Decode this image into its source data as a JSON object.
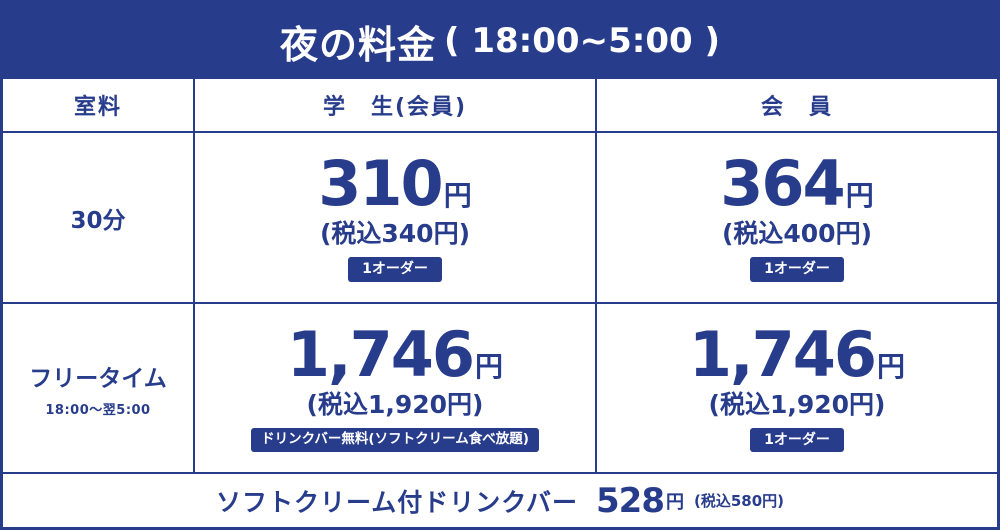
{
  "title": {
    "main": "夜の料金",
    "hours": "( 18:00~5:00 )"
  },
  "headers": {
    "room": "室料",
    "student": "学　生(会員)",
    "member": "会　員"
  },
  "rows": [
    {
      "label": "30分",
      "sub": "",
      "student": {
        "price": "310",
        "yen": "円",
        "tax": "(税込340円)",
        "note": "1オーダー"
      },
      "member": {
        "price": "364",
        "yen": "円",
        "tax": "(税込400円)",
        "note": "1オーダー"
      }
    },
    {
      "label": "フリータイム",
      "sub": "18:00〜翌5:00",
      "student": {
        "price": "1,746",
        "yen": "円",
        "tax": "(税込1,920円)",
        "note": "ドリンクバー無料(ソフトクリーム食べ放題)"
      },
      "member": {
        "price": "1,746",
        "yen": "円",
        "tax": "(税込1,920円)",
        "note": "1オーダー"
      }
    }
  ],
  "footer": {
    "label": "ソフトクリーム付ドリンクバー",
    "price": "528",
    "yen": "円",
    "tax": "(税込580円)"
  },
  "colors": {
    "brand": "#283c8c",
    "background": "#ffffff"
  }
}
